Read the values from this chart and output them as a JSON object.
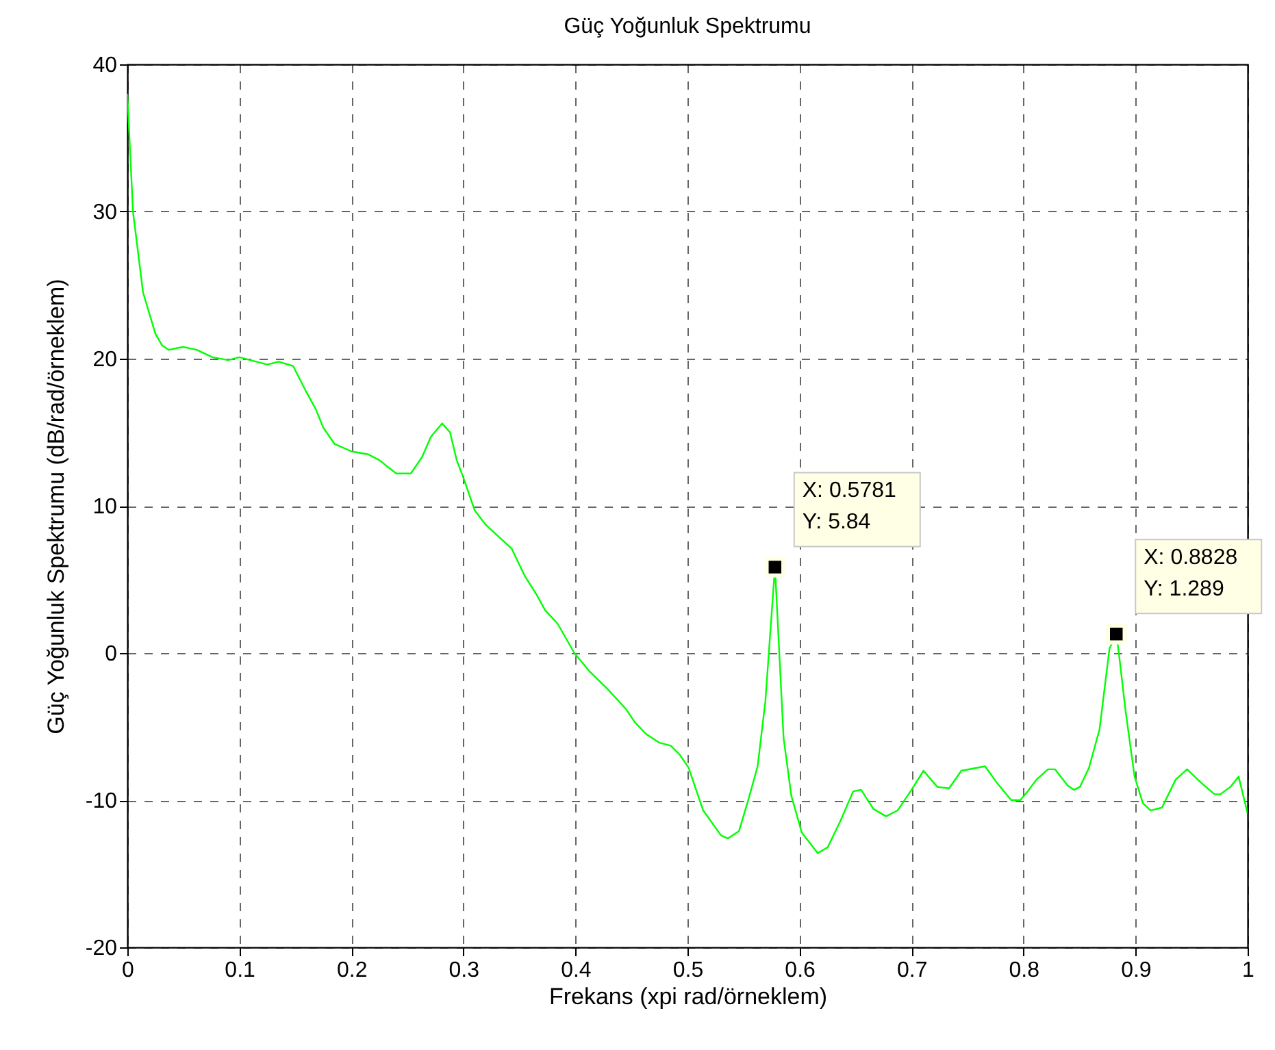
{
  "chart_data": {
    "type": "line",
    "title": "Güç Yoğunluk Spektrumu",
    "xlabel": "Frekans (xpi rad/örneklem)",
    "ylabel": "Güç Yoğunluk Spektrumu (dB/rad/örneklem)",
    "xlim": [
      0,
      1
    ],
    "ylim": [
      -20,
      40
    ],
    "xticks": [
      0,
      0.1,
      0.2,
      0.3,
      0.4,
      0.5,
      0.6,
      0.7,
      0.8,
      0.9,
      1
    ],
    "yticks": [
      -20,
      -10,
      0,
      10,
      20,
      30,
      40
    ],
    "grid": true,
    "series": [
      {
        "color": "#00ff00",
        "x": [
          0,
          0.005,
          0.014,
          0.025,
          0.031,
          0.037,
          0.05,
          0.062,
          0.076,
          0.09,
          0.1,
          0.115,
          0.125,
          0.135,
          0.148,
          0.16,
          0.168,
          0.175,
          0.185,
          0.2,
          0.215,
          0.225,
          0.24,
          0.253,
          0.263,
          0.271,
          0.281,
          0.288,
          0.294,
          0.3,
          0.31,
          0.32,
          0.343,
          0.355,
          0.365,
          0.373,
          0.384,
          0.399,
          0.412,
          0.428,
          0.445,
          0.453,
          0.463,
          0.475,
          0.485,
          0.493,
          0.501,
          0.514,
          0.53,
          0.536,
          0.546,
          0.555,
          0.5626,
          0.5695,
          0.5781,
          0.5858,
          0.5927,
          0.602,
          0.6163,
          0.6252,
          0.6366,
          0.648,
          0.655,
          0.666,
          0.6773,
          0.6875,
          0.7,
          0.7107,
          0.723,
          0.7335,
          0.7445,
          0.7656,
          0.777,
          0.789,
          0.797,
          0.8027,
          0.8116,
          0.8218,
          0.828,
          0.8393,
          0.845,
          0.8503,
          0.8584,
          0.8678,
          0.8767,
          0.8828,
          0.8849,
          0.891,
          0.8991,
          0.9065,
          0.9134,
          0.9236,
          0.9358,
          0.946,
          0.9582,
          0.9704,
          0.9757,
          0.9846,
          0.992,
          1
        ],
        "values": [
          38,
          30,
          24.5,
          21.7,
          20.9,
          20.6,
          20.8,
          20.6,
          20.1,
          19.9,
          20.1,
          19.8,
          19.6,
          19.8,
          19.5,
          17.7,
          16.6,
          15.3,
          14.2,
          13.7,
          13.5,
          13.1,
          12.2,
          12.2,
          13.3,
          14.7,
          15.6,
          15,
          13.1,
          11.9,
          9.7,
          8.7,
          7.1,
          5.2,
          4,
          2.9,
          2,
          0,
          -1.2,
          -2.4,
          -3.8,
          -4.7,
          -5.5,
          -6.1,
          -6.3,
          -6.9,
          -7.8,
          -10.7,
          -12.4,
          -12.6,
          -12.1,
          -9.8,
          -7.7,
          -3.3,
          5.84,
          -5.8,
          -9.7,
          -12.2,
          -13.6,
          -13.2,
          -11.4,
          -9.4,
          -9.3,
          -10.6,
          -11.1,
          -10.7,
          -9.3,
          -8,
          -9.1,
          -9.2,
          -8,
          -7.7,
          -8.9,
          -10,
          -10,
          -9.5,
          -8.6,
          -7.9,
          -7.9,
          -9,
          -9.3,
          -9.1,
          -7.8,
          -5.2,
          0.3,
          1.289,
          0.1,
          -3.9,
          -8.4,
          -10.2,
          -10.7,
          -10.5,
          -8.6,
          -7.9,
          -8.8,
          -9.6,
          -9.6,
          -9.1,
          -8.4,
          -10.9
        ]
      }
    ],
    "annotations": [
      {
        "text": "X: 0.5781\nY: 5.84",
        "x": 0.5781,
        "y": 5.84
      },
      {
        "text": "X: 0.8828\nY: 1.289",
        "x": 0.8828,
        "y": 1.289
      }
    ]
  }
}
